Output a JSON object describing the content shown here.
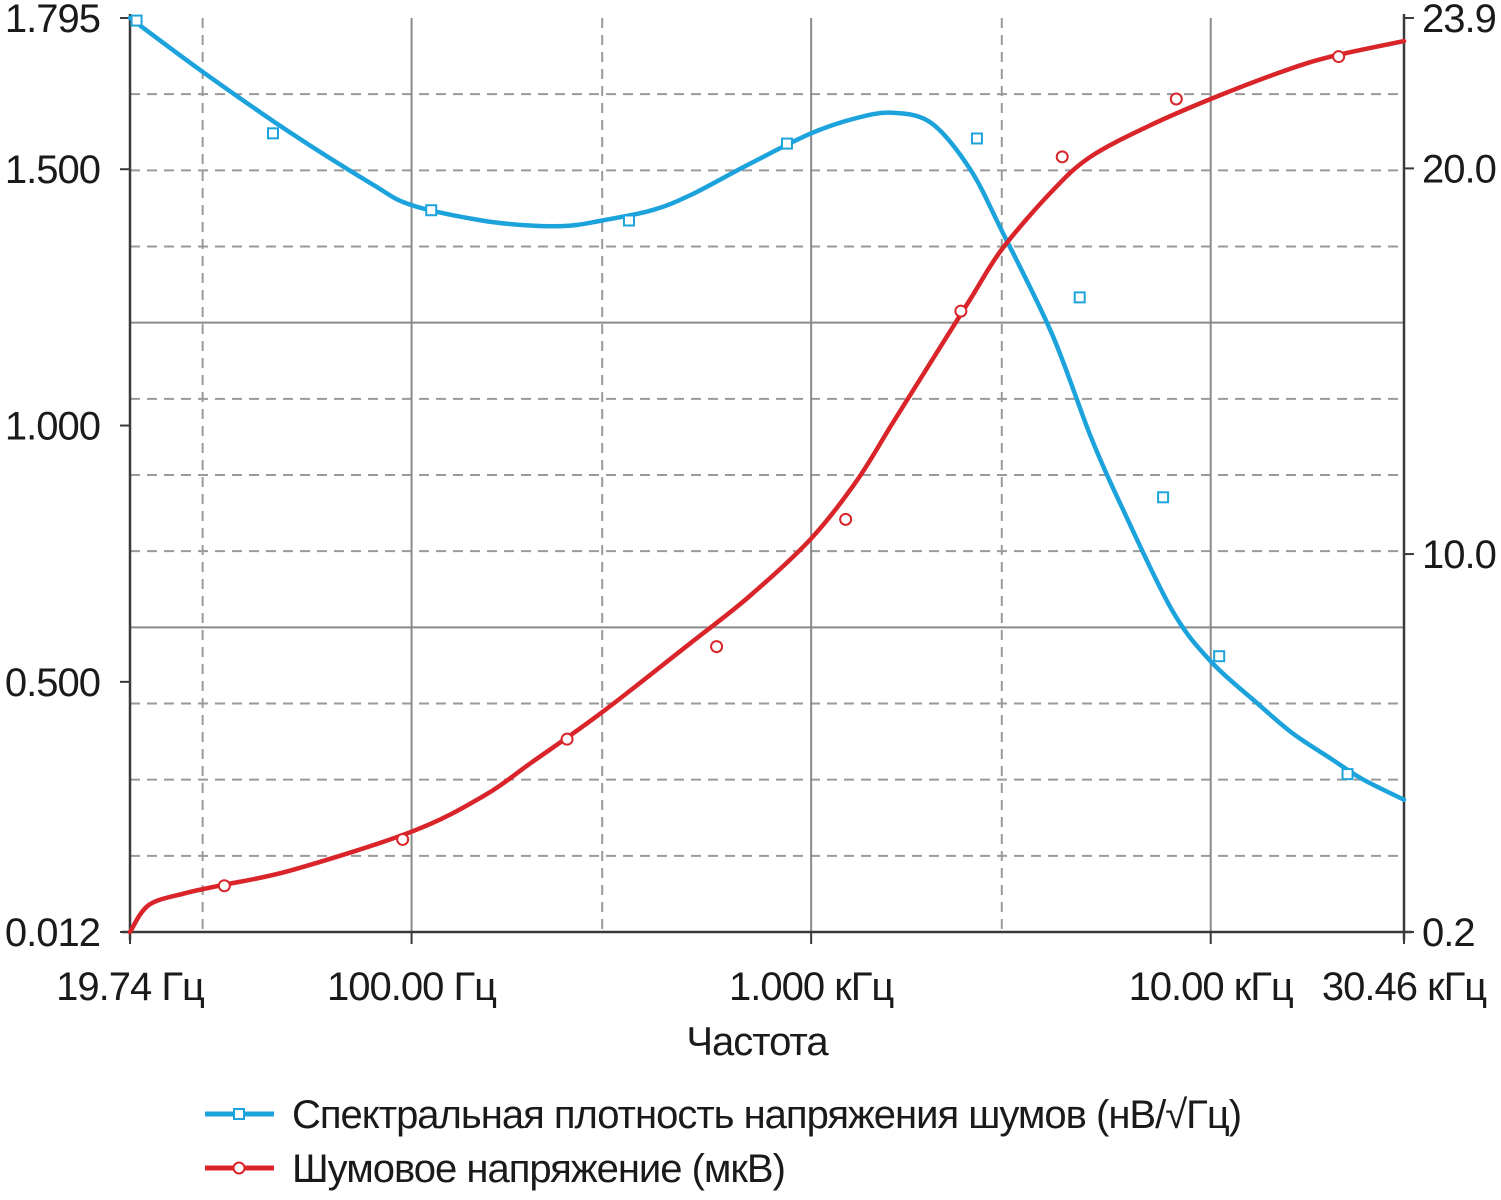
{
  "chart_data": {
    "type": "line",
    "xlabel": "Частота",
    "x_scale": "log",
    "x_range_hz": [
      19.74,
      30460
    ],
    "x_ticks": [
      {
        "value": 19.74,
        "label": "19.74 Гц"
      },
      {
        "value": 100,
        "label": "100.00 Гц"
      },
      {
        "value": 1000,
        "label": "1.000 кГц"
      },
      {
        "value": 10000,
        "label": "10.00 кГц"
      },
      {
        "value": 30460,
        "label": "30.46 кГц"
      }
    ],
    "x_major_grid": [
      100,
      1000,
      10000
    ],
    "x_minor_grid": [
      30,
      300,
      3000
    ],
    "y_left": {
      "range": [
        0.012,
        1.795
      ],
      "ticks": [
        {
          "value": 1.795,
          "label": "1.795"
        },
        {
          "value": 1.5,
          "label": "1.500"
        },
        {
          "value": 1.0,
          "label": "1.000"
        },
        {
          "value": 0.5,
          "label": "0.500"
        },
        {
          "value": 0.012,
          "label": "0.012"
        }
      ]
    },
    "y_right": {
      "range": [
        0.2,
        23.9
      ],
      "ticks": [
        {
          "value": 23.9,
          "label": "23.9"
        },
        {
          "value": 20.0,
          "label": "20.0"
        },
        {
          "value": 10.0,
          "label": "10.0"
        },
        {
          "value": 0.2,
          "label": "0.2"
        }
      ]
    },
    "grid": true,
    "legend_position": "bottom",
    "series": [
      {
        "name": "Спектральная плотность напряжения шумов (нВ/√Гц)",
        "axis": "left",
        "color": "#1da3dc",
        "marker": "square",
        "x": [
          19.74,
          30,
          50,
          80,
          100,
          150,
          200,
          250,
          300,
          400,
          500,
          700,
          1000,
          1300,
          1600,
          2000,
          2500,
          3000,
          4000,
          5000,
          6000,
          8000,
          10000,
          13000,
          16000,
          20000,
          24000,
          30460
        ],
        "y": [
          1.795,
          1.69,
          1.57,
          1.47,
          1.43,
          1.4,
          1.39,
          1.39,
          1.4,
          1.42,
          1.45,
          1.51,
          1.57,
          1.6,
          1.61,
          1.59,
          1.5,
          1.38,
          1.18,
          0.98,
          0.84,
          0.64,
          0.54,
          0.46,
          0.4,
          0.35,
          0.31,
          0.27
        ],
        "markers_x": [
          20.5,
          45,
          112,
          350,
          870,
          2600,
          4700,
          7600,
          10500,
          22000
        ],
        "markers_y": [
          1.79,
          1.57,
          1.42,
          1.4,
          1.55,
          1.56,
          1.25,
          0.86,
          0.55,
          0.32
        ]
      },
      {
        "name": "Шумовое напряжение (мкВ)",
        "axis": "right",
        "color": "#d9252a",
        "marker": "circle",
        "x": [
          19.74,
          22,
          27,
          33,
          50,
          100,
          150,
          200,
          300,
          500,
          700,
          1000,
          1300,
          1600,
          2000,
          2500,
          3000,
          4000,
          5000,
          7000,
          10000,
          15000,
          20000,
          30460
        ],
        "y": [
          0.2,
          0.9,
          1.2,
          1.4,
          1.8,
          2.8,
          3.7,
          4.6,
          5.9,
          7.7,
          8.9,
          10.4,
          11.9,
          13.4,
          15.0,
          16.6,
          17.9,
          19.4,
          20.3,
          21.1,
          21.8,
          22.5,
          22.9,
          23.3
        ],
        "markers_x": [
          34,
          95,
          245,
          580,
          1220,
          2370,
          4250,
          8200,
          20900
        ],
        "markers_y": [
          1.4,
          2.6,
          5.2,
          7.6,
          10.9,
          16.3,
          20.3,
          21.8,
          22.9
        ]
      }
    ]
  }
}
